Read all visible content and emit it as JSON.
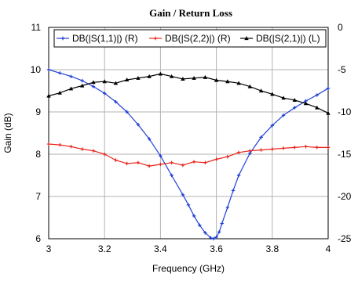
{
  "chart_data": {
    "type": "line",
    "title": "Gain / Return Loss",
    "xlabel": "Frequency (GHz)",
    "ylabel_left": "Gain (dB)",
    "ylabel_right": "",
    "xlim": [
      3,
      4
    ],
    "ylim_left": [
      6,
      11
    ],
    "ylim_right": [
      -25,
      0
    ],
    "x_ticks": [
      "3",
      "3.2",
      "3.4",
      "3.6",
      "3.8",
      "4"
    ],
    "y_left_ticks": [
      "6",
      "7",
      "8",
      "9",
      "10",
      "11"
    ],
    "y_right_ticks": [
      "-25",
      "-20",
      "-15",
      "-10",
      "-5",
      "0"
    ],
    "grid": true,
    "legend_position": "top",
    "series": [
      {
        "name": "DB(|S(1,1)|) (R)",
        "axis": "right",
        "color": "#1f3fd6",
        "marker": "plus",
        "x": [
          3.0,
          3.04,
          3.08,
          3.12,
          3.16,
          3.2,
          3.24,
          3.28,
          3.32,
          3.36,
          3.4,
          3.44,
          3.48,
          3.5,
          3.52,
          3.54,
          3.56,
          3.58,
          3.59,
          3.6,
          3.61,
          3.62,
          3.64,
          3.66,
          3.68,
          3.72,
          3.76,
          3.8,
          3.84,
          3.88,
          3.92,
          3.96,
          4.0
        ],
        "y": [
          -5.0,
          -5.4,
          -5.8,
          -6.3,
          -7.0,
          -7.8,
          -8.8,
          -10.0,
          -11.5,
          -13.2,
          -15.2,
          -17.5,
          -19.8,
          -21.0,
          -22.3,
          -23.4,
          -24.3,
          -24.9,
          -25.0,
          -24.8,
          -24.2,
          -23.2,
          -21.3,
          -19.3,
          -17.5,
          -14.9,
          -13.0,
          -11.6,
          -10.4,
          -9.5,
          -8.7,
          -8.0,
          -7.2
        ]
      },
      {
        "name": "DB(|S(2,2)|) (R)",
        "axis": "right",
        "color": "#e8231b",
        "marker": "plus",
        "x": [
          3.0,
          3.04,
          3.08,
          3.12,
          3.16,
          3.2,
          3.24,
          3.28,
          3.32,
          3.36,
          3.4,
          3.44,
          3.48,
          3.52,
          3.56,
          3.6,
          3.64,
          3.68,
          3.72,
          3.76,
          3.8,
          3.84,
          3.88,
          3.92,
          3.96,
          4.0
        ],
        "y": [
          -13.8,
          -13.9,
          -14.1,
          -14.4,
          -14.6,
          -15.0,
          -15.7,
          -16.1,
          -16.0,
          -16.4,
          -16.2,
          -16.0,
          -16.3,
          -15.9,
          -16.0,
          -15.6,
          -15.3,
          -14.8,
          -14.6,
          -14.5,
          -14.4,
          -14.3,
          -14.2,
          -14.1,
          -14.2,
          -14.2
        ]
      },
      {
        "name": "DB(|S(2,1)|) (L)",
        "axis": "left",
        "color": "#000000",
        "marker": "triangle",
        "x": [
          3.0,
          3.04,
          3.08,
          3.12,
          3.16,
          3.2,
          3.24,
          3.28,
          3.32,
          3.36,
          3.4,
          3.44,
          3.48,
          3.52,
          3.56,
          3.6,
          3.64,
          3.68,
          3.72,
          3.76,
          3.8,
          3.84,
          3.88,
          3.92,
          3.96,
          4.0
        ],
        "y": [
          9.38,
          9.45,
          9.55,
          9.62,
          9.7,
          9.72,
          9.68,
          9.76,
          9.8,
          9.84,
          9.9,
          9.84,
          9.78,
          9.8,
          9.82,
          9.75,
          9.72,
          9.68,
          9.6,
          9.5,
          9.42,
          9.33,
          9.28,
          9.2,
          9.1,
          8.97
        ]
      }
    ]
  }
}
